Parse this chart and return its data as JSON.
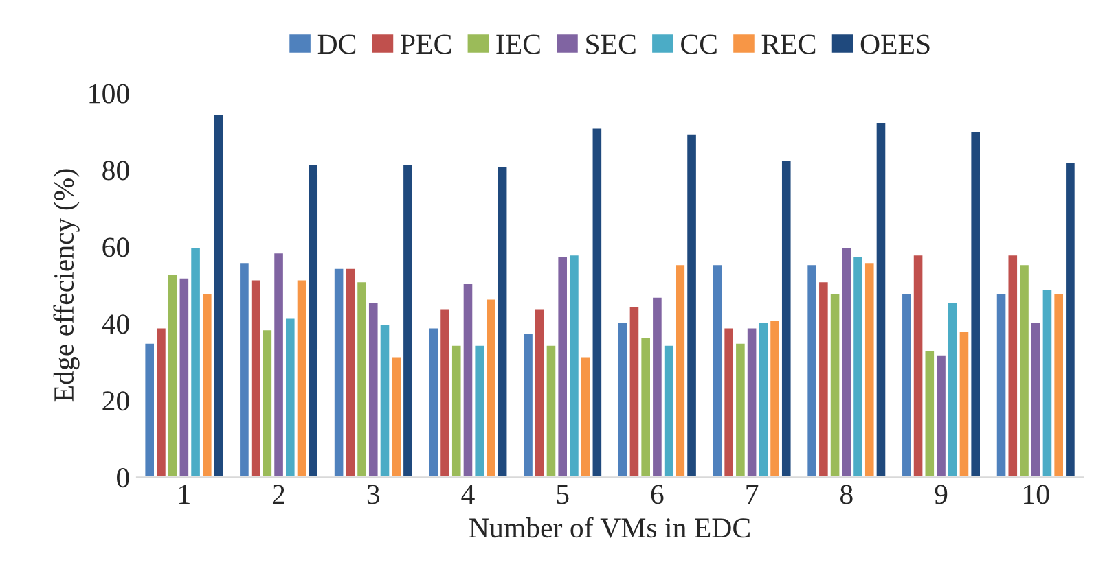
{
  "chart_data": {
    "type": "bar",
    "xlabel": "Number of VMs in EDC",
    "ylabel": "Edge effeciency (%)",
    "categories": [
      "1",
      "2",
      "3",
      "4",
      "5",
      "6",
      "7",
      "8",
      "9",
      "10"
    ],
    "series": [
      {
        "name": "DC",
        "color": "#4f81bd",
        "values": [
          35,
          56,
          54.5,
          39,
          37.5,
          40.5,
          55.5,
          55.5,
          48,
          48
        ]
      },
      {
        "name": "PEC",
        "color": "#c0504d",
        "values": [
          39,
          51.5,
          54.5,
          44,
          44,
          44.5,
          39,
          51,
          58,
          58
        ]
      },
      {
        "name": "IEC",
        "color": "#9bbb59",
        "values": [
          53,
          38.5,
          51,
          34.5,
          34.5,
          36.5,
          35,
          48,
          33,
          55.5
        ]
      },
      {
        "name": "SEC",
        "color": "#8064a2",
        "values": [
          52,
          58.5,
          45.5,
          50.5,
          57.5,
          47,
          39,
          60,
          32,
          40.5
        ]
      },
      {
        "name": "CC",
        "color": "#4bacc6",
        "values": [
          60,
          41.5,
          40,
          34.5,
          58,
          34.5,
          40.5,
          57.5,
          45.5,
          49
        ]
      },
      {
        "name": "REC",
        "color": "#f79646",
        "values": [
          48,
          51.5,
          31.5,
          46.5,
          31.5,
          55.5,
          41,
          56,
          38,
          48
        ]
      },
      {
        "name": "OEES",
        "color": "#1f497d",
        "values": [
          94.5,
          81.5,
          81.5,
          81,
          91,
          89.5,
          82.5,
          92.5,
          90,
          82
        ]
      }
    ],
    "ylim": [
      0,
      100
    ],
    "yticks": [
      0,
      20,
      40,
      60,
      80,
      100
    ],
    "grid": false,
    "legend": "top"
  }
}
